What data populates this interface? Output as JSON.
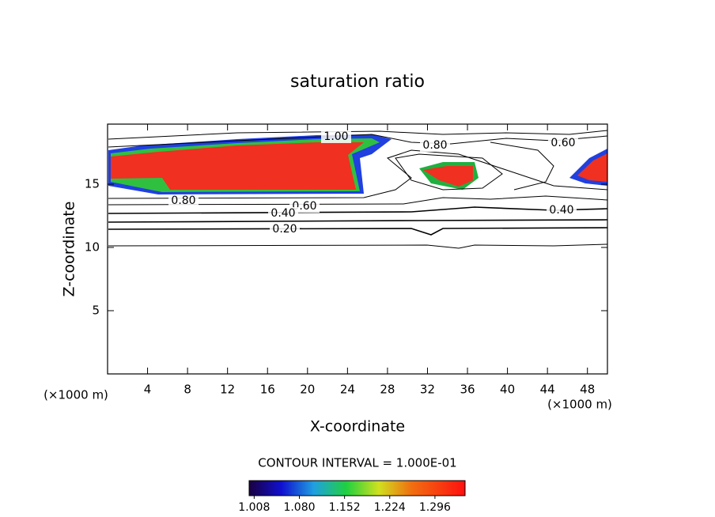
{
  "chart_data": {
    "type": "contour",
    "title": "saturation ratio",
    "x_label": "X-coordinate",
    "y_label": "Z-coordinate",
    "x_unit_label": "(×1000 m)",
    "y_unit_label": "(×1000 m)",
    "xlim": [
      0,
      50
    ],
    "xticks": [
      4,
      8,
      12,
      16,
      20,
      24,
      28,
      32,
      36,
      40,
      44,
      48
    ],
    "ylim": [
      0,
      19.75
    ],
    "yticks": [
      5,
      10,
      15
    ],
    "contour_levels": [
      {
        "value": 0.2,
        "label": "0.20"
      },
      {
        "value": 0.4,
        "label": "0.40"
      },
      {
        "value": 0.6,
        "label": "0.60"
      },
      {
        "value": 0.8,
        "label": "0.80"
      },
      {
        "value": 1.0,
        "label": "1.00"
      }
    ],
    "contour_interval_text": "CONTOUR INTERVAL = 1.000E-01",
    "colorbar": {
      "clim": [
        1.0,
        1.344
      ],
      "ticks": [
        {
          "value": 1.008,
          "label": "1.008"
        },
        {
          "value": 1.08,
          "label": "1.080"
        },
        {
          "value": 1.152,
          "label": "1.152"
        },
        {
          "value": 1.224,
          "label": "1.224"
        },
        {
          "value": 1.296,
          "label": "1.296"
        }
      ]
    }
  }
}
